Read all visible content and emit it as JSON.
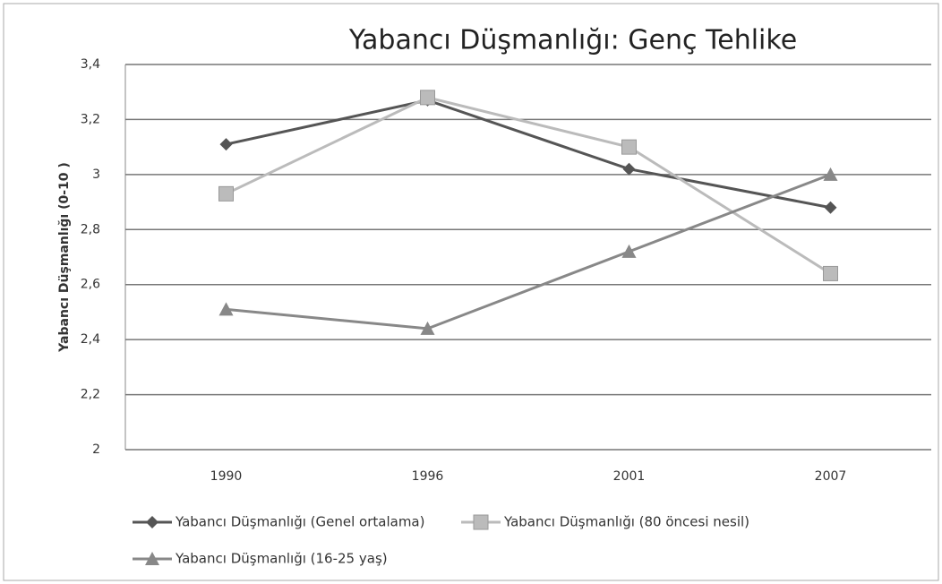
{
  "chart_data": {
    "type": "line",
    "title": "Yabancı Düşmanlığı: Genç Tehlike",
    "y_label": "Yabancı Düşmanlığı (0-10 )",
    "categories": [
      "1990",
      "1996",
      "2001",
      "2007"
    ],
    "series": [
      {
        "name": "Yabancı Düşmanlığı (Genel ortalama)",
        "color": "#555555",
        "marker": "diamond",
        "values": [
          3.11,
          3.27,
          3.02,
          2.88
        ]
      },
      {
        "name": "Yabancı Düşmanlığı (80 öncesi nesil)",
        "color": "#bbbbbb",
        "marker": "square",
        "values": [
          2.93,
          3.28,
          3.1,
          2.64
        ]
      },
      {
        "name": "Yabancı Düşmanlığı (16-25 yaş)",
        "color": "#888888",
        "marker": "triangle",
        "values": [
          2.51,
          2.44,
          2.72,
          3.0
        ]
      }
    ],
    "ylim": [
      2,
      3.4
    ],
    "yticks": [
      2,
      {
        "value": 2.2,
        "label": "2,2"
      },
      {
        "value": 2.4,
        "label": "2,4"
      },
      {
        "value": 2.6,
        "label": "2,6"
      },
      {
        "value": 2.8,
        "label": "2,8"
      },
      3,
      {
        "value": 3.2,
        "label": "3,2"
      },
      {
        "value": 3.4,
        "label": "3,4"
      }
    ],
    "grid": true,
    "legend": "bottom"
  }
}
